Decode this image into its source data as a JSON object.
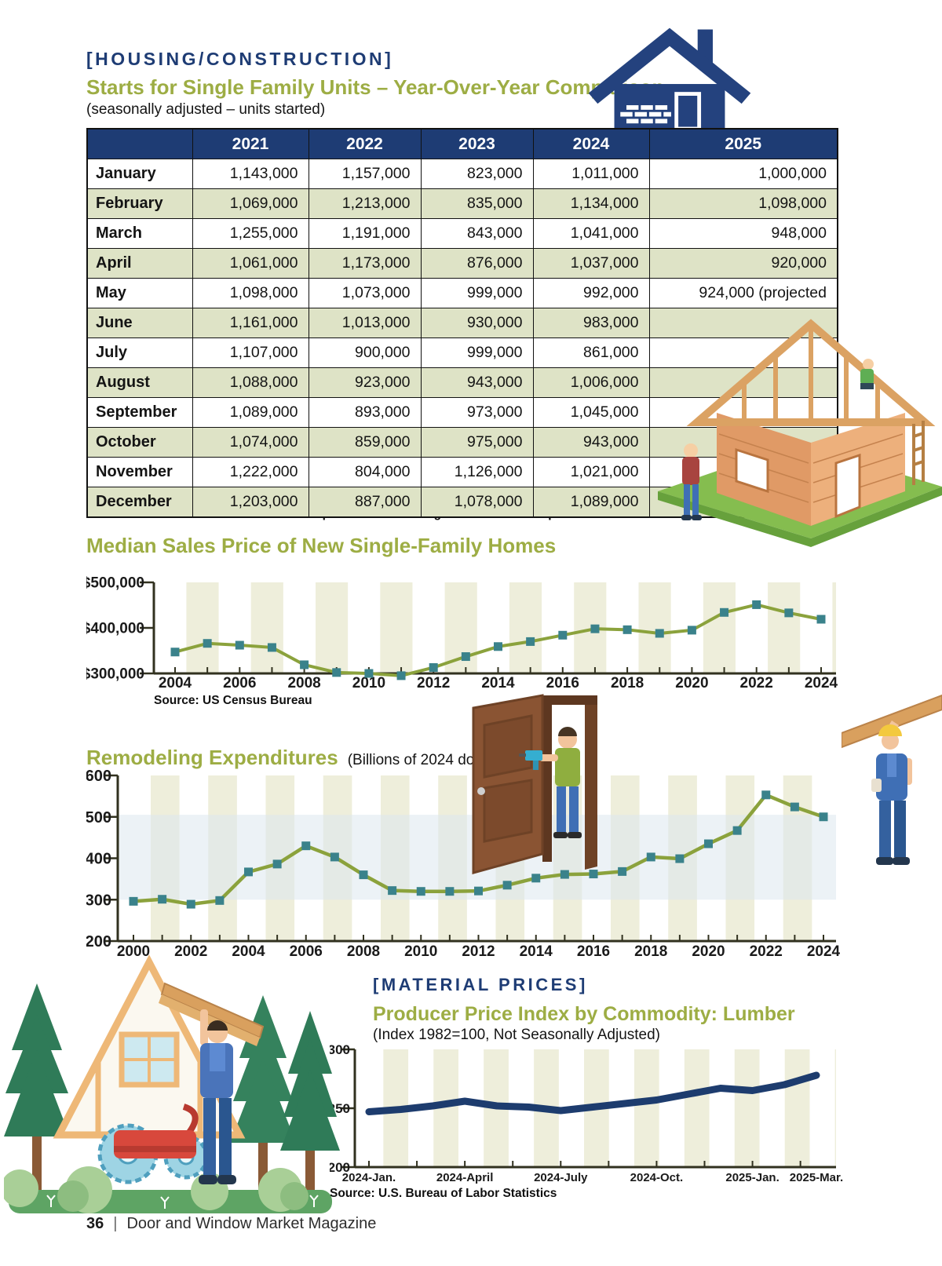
{
  "page": {
    "section_tag": "[HOUSING/CONSTRUCTION]",
    "title": "Starts for Single Family Units – Year-Over-Year Comparison",
    "subtitle": "(seasonally adjusted – units started)",
    "table_source": "Source: U.S. Census Bureau and U.S. Department of Housing and Urban Development",
    "material_tag": "[MATERIAL PRICES]",
    "footer_page": "36",
    "footer_sep": "|",
    "footer_text": "Door and Window Market Magazine"
  },
  "colors": {
    "navy": "#1e3c74",
    "olive": "#9dad44",
    "line": "#8ba23c",
    "marker": "#3a828b",
    "stripe": "#eeeedb",
    "rowalt": "#dee3c6",
    "lumber": "#1d3c6e",
    "axis": "#31311f",
    "hband": "#dce8ee"
  },
  "starts_table": {
    "columns": [
      "2021",
      "2022",
      "2023",
      "2024",
      "2025"
    ],
    "rows": [
      {
        "month": "January",
        "values": [
          "1,143,000",
          "1,157,000",
          "823,000",
          "1,011,000",
          "1,000,000"
        ]
      },
      {
        "month": "February",
        "values": [
          "1,069,000",
          "1,213,000",
          "835,000",
          "1,134,000",
          "1,098,000"
        ]
      },
      {
        "month": "March",
        "values": [
          "1,255,000",
          "1,191,000",
          "843,000",
          "1,041,000",
          "948,000"
        ]
      },
      {
        "month": "April",
        "values": [
          "1,061,000",
          "1,173,000",
          "876,000",
          "1,037,000",
          "920,000"
        ]
      },
      {
        "month": "May",
        "values": [
          "1,098,000",
          "1,073,000",
          "999,000",
          "992,000",
          "924,000 (projected"
        ]
      },
      {
        "month": "June",
        "values": [
          "1,161,000",
          "1,013,000",
          "930,000",
          "983,000",
          ""
        ]
      },
      {
        "month": "July",
        "values": [
          "1,107,000",
          "900,000",
          "999,000",
          "861,000",
          ""
        ]
      },
      {
        "month": "August",
        "values": [
          "1,088,000",
          "923,000",
          "943,000",
          "1,006,000",
          ""
        ]
      },
      {
        "month": "September",
        "values": [
          "1,089,000",
          "893,000",
          "973,000",
          "1,045,000",
          ""
        ]
      },
      {
        "month": "October",
        "values": [
          "1,074,000",
          "859,000",
          "975,000",
          "943,000",
          ""
        ]
      },
      {
        "month": "November",
        "values": [
          "1,222,000",
          "804,000",
          "1,126,000",
          "1,021,000",
          ""
        ]
      },
      {
        "month": "December",
        "values": [
          "1,203,000",
          "887,000",
          "1,078,000",
          "1,089,000",
          ""
        ]
      }
    ]
  },
  "chart_data": [
    {
      "type": "line",
      "title": "Median Sales Price of New Single-Family Homes",
      "source": "Source: US Census Bureau",
      "x": [
        2004,
        2005,
        2006,
        2007,
        2008,
        2009,
        2010,
        2011,
        2012,
        2013,
        2014,
        2015,
        2016,
        2017,
        2018,
        2019,
        2020,
        2021,
        2022,
        2023,
        2024
      ],
      "values": [
        347000,
        366000,
        362000,
        357000,
        319000,
        302000,
        300000,
        295000,
        313000,
        337000,
        359000,
        370000,
        384000,
        398000,
        396000,
        388000,
        395000,
        434000,
        451000,
        433000,
        419000
      ],
      "ylim": [
        300000,
        500000
      ],
      "yticks": [
        {
          "v": 300000,
          "label": "$300,000"
        },
        {
          "v": 400000,
          "label": "$400,000"
        },
        {
          "v": 500000,
          "label": "$500,000"
        }
      ],
      "xticks": [
        {
          "v": 2004,
          "label": "2004"
        },
        {
          "v": 2006,
          "label": "2006"
        },
        {
          "v": 2008,
          "label": "2008"
        },
        {
          "v": 2010,
          "label": "2010"
        },
        {
          "v": 2012,
          "label": "2012"
        },
        {
          "v": 2014,
          "label": "2014"
        },
        {
          "v": 2016,
          "label": "2016"
        },
        {
          "v": 2018,
          "label": "2018"
        },
        {
          "v": 2020,
          "label": "2020"
        },
        {
          "v": 2022,
          "label": "2022"
        },
        {
          "v": 2024,
          "label": "2024"
        }
      ],
      "legend": "none",
      "grid": "off"
    },
    {
      "type": "line",
      "title": "Remodeling Expenditures",
      "subtitle": "(Billions of 2024 dollars)",
      "x": [
        2000,
        2001,
        2002,
        2003,
        2004,
        2005,
        2006,
        2007,
        2008,
        2009,
        2010,
        2011,
        2012,
        2013,
        2014,
        2015,
        2016,
        2017,
        2018,
        2019,
        2020,
        2021,
        2022,
        2023,
        2024
      ],
      "values": [
        296,
        301,
        289,
        298,
        367,
        386,
        430,
        403,
        360,
        322,
        320,
        320,
        321,
        335,
        352,
        361,
        362,
        368,
        403,
        399,
        435,
        467,
        553,
        524,
        500
      ],
      "ylim": [
        200,
        600
      ],
      "yticks": [
        {
          "v": 200,
          "label": "200"
        },
        {
          "v": 300,
          "label": "300"
        },
        {
          "v": 400,
          "label": "400"
        },
        {
          "v": 500,
          "label": "500"
        },
        {
          "v": 600,
          "label": "600"
        }
      ],
      "xticks": [
        {
          "v": 2000,
          "label": "2000"
        },
        {
          "v": 2002,
          "label": "2002"
        },
        {
          "v": 2004,
          "label": "2004"
        },
        {
          "v": 2006,
          "label": "2006"
        },
        {
          "v": 2008,
          "label": "2008"
        },
        {
          "v": 2010,
          "label": "2010"
        },
        {
          "v": 2012,
          "label": "2012"
        },
        {
          "v": 2014,
          "label": "2014"
        },
        {
          "v": 2016,
          "label": "2016"
        },
        {
          "v": 2018,
          "label": "2018"
        },
        {
          "v": 2020,
          "label": "2020"
        },
        {
          "v": 2022,
          "label": "2022"
        },
        {
          "v": 2024,
          "label": "2024"
        }
      ],
      "legend": "none",
      "grid": "off"
    },
    {
      "type": "line",
      "title": "Producer Price Index by Commodity: Lumber",
      "subtitle": "(Index 1982=100, Not Seasonally Adjusted)",
      "source": "Source: U.S. Bureau of Labor Statistics",
      "x": [
        0,
        1,
        2,
        3,
        4,
        5,
        6,
        7,
        8,
        9,
        10,
        11,
        12,
        13,
        14
      ],
      "values": [
        247,
        249,
        252,
        256,
        252,
        251,
        248,
        251,
        254,
        257,
        262,
        267,
        265,
        270,
        278
      ],
      "ylim": [
        200,
        300
      ],
      "yticks": [
        {
          "v": 200,
          "label": "200"
        },
        {
          "v": 250,
          "label": "250"
        },
        {
          "v": 300,
          "label": "300"
        }
      ],
      "xticks": [
        {
          "v": 0,
          "label": "2024-Jan."
        },
        {
          "v": 3,
          "label": "2024-April"
        },
        {
          "v": 6,
          "label": "2024-July"
        },
        {
          "v": 9,
          "label": "2024-Oct."
        },
        {
          "v": 12,
          "label": "2025-Jan."
        },
        {
          "v": 14,
          "label": "2025-Mar."
        }
      ],
      "legend": "none",
      "grid": "off"
    }
  ]
}
